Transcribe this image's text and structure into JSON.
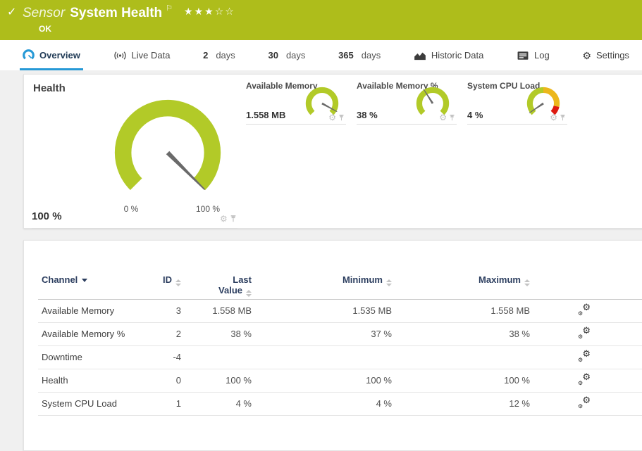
{
  "colors": {
    "banner_green": "#aebd1b",
    "gauge_green": "#b2ca28",
    "cpu_yellow": "#ecb71c",
    "cpu_red": "#dd1a10",
    "accent_blue": "#2699d6",
    "header_navy": "#2c3e5f",
    "needle_gray": "#6a6a6a"
  },
  "banner": {
    "status_icon": "✓",
    "kind": "Sensor",
    "title": "System Health",
    "flag_icon": "⚐",
    "stars_filled": "★★★",
    "stars_empty": "☆☆",
    "status": "OK"
  },
  "tabs": {
    "overview": "Overview",
    "live_data": "Live Data",
    "d2_num": "2",
    "d2_label": "days",
    "d30_num": "30",
    "d30_label": "days",
    "d365_num": "365",
    "d365_label": "days",
    "historic": "Historic Data",
    "log": "Log",
    "settings": "Settings",
    "settings_gear": "⚙"
  },
  "gauges": {
    "primary": {
      "title": "Health",
      "value": "100 %",
      "scale_min": "0 %",
      "scale_max": "100 %",
      "percent": 100
    },
    "small": [
      {
        "title": "Available Memory",
        "value": "1.558 MB",
        "percent": 94
      },
      {
        "title": "Available Memory %",
        "value": "38 %",
        "percent": 38
      },
      {
        "title": "System CPU Load",
        "value": "4 %",
        "percent": 4
      }
    ],
    "gear_glyph": "⚙"
  },
  "table": {
    "headers": {
      "channel": "Channel",
      "id": "ID",
      "last_line1": "Last",
      "last_line2": "Value",
      "minimum": "Minimum",
      "maximum": "Maximum"
    },
    "gear_glyph": "⚙",
    "rows": [
      {
        "channel": "Available Memory",
        "id": "3",
        "last": "1.558 MB",
        "min": "1.535 MB",
        "max": "1.558 MB"
      },
      {
        "channel": "Available Memory %",
        "id": "2",
        "last": "38 %",
        "min": "37 %",
        "max": "38 %"
      },
      {
        "channel": "Downtime",
        "id": "-4",
        "last": "",
        "min": "",
        "max": ""
      },
      {
        "channel": "Health",
        "id": "0",
        "last": "100 %",
        "min": "100 %",
        "max": "100 %"
      },
      {
        "channel": "System CPU Load",
        "id": "1",
        "last": "4 %",
        "min": "4 %",
        "max": "12 %"
      }
    ]
  }
}
